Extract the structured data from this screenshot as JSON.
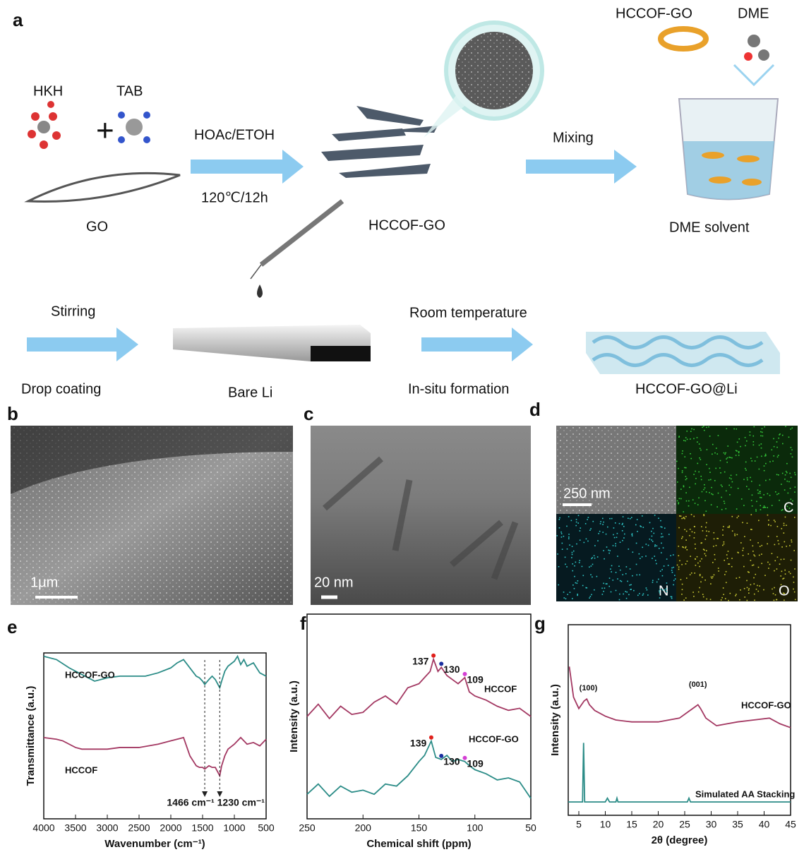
{
  "panel_labels": [
    "a",
    "b",
    "c",
    "d",
    "e",
    "f",
    "g"
  ],
  "schematic": {
    "hkh": "HKH",
    "tab": "TAB",
    "go": "GO",
    "hoac": "HOAc/ETOH",
    "temp": "120℃/12h",
    "hccof_go": "HCCOF-GO",
    "mixing": "Mixing",
    "hccof_go_top": "HCCOF-GO",
    "dme": "DME",
    "dme_solvent": "DME solvent",
    "stirring": "Stirring",
    "drop_coating": "Drop coating",
    "bare_li": "Bare Li",
    "room_temp": "Room temperature",
    "insitu": "In-situ formation",
    "product": "HCCOF-GO@Li"
  },
  "micrographs": {
    "b_scale": "1μm",
    "c_scale": "20 nm",
    "d_scale": "250 nm",
    "d_maps": [
      "C",
      "N",
      "O"
    ]
  },
  "chart_data": [
    {
      "type": "line",
      "xlabel": "Wavenumber (cm⁻¹)",
      "ylabel": "Transmittance (a.u.)",
      "xlim": [
        4000,
        500
      ],
      "xticks": [
        4000,
        3500,
        3000,
        2500,
        2000,
        1500,
        1000,
        500
      ],
      "ylim": [
        0,
        10
      ],
      "series": [
        {
          "name": "HCCOF-GO",
          "color": "#2b8c87",
          "x": [
            4000,
            3800,
            3600,
            3400,
            3200,
            3000,
            2800,
            2600,
            2400,
            2200,
            2000,
            1900,
            1800,
            1700,
            1600,
            1550,
            1500,
            1466,
            1400,
            1350,
            1300,
            1230,
            1200,
            1150,
            1100,
            1000,
            950,
            900,
            850,
            800,
            700,
            600,
            500
          ],
          "values": [
            9.8,
            9.6,
            9.1,
            8.7,
            8.3,
            8.5,
            8.6,
            8.6,
            8.6,
            8.8,
            9.1,
            9.4,
            9.6,
            9.1,
            8.6,
            8.5,
            8.3,
            8.1,
            8.4,
            8.6,
            8.4,
            7.9,
            8.3,
            8.9,
            9.2,
            9.5,
            9.8,
            9.3,
            9.6,
            9.2,
            9.4,
            8.8,
            8.6
          ]
        },
        {
          "name": "HCCOF",
          "color": "#a33862",
          "x": [
            4000,
            3800,
            3700,
            3600,
            3500,
            3400,
            3200,
            3000,
            2800,
            2500,
            2200,
            2000,
            1800,
            1700,
            1600,
            1550,
            1500,
            1466,
            1400,
            1350,
            1300,
            1230,
            1200,
            1150,
            1100,
            1000,
            950,
            900,
            850,
            800,
            700,
            600,
            500
          ],
          "values": [
            4.9,
            4.8,
            4.7,
            4.5,
            4.3,
            4.2,
            4.2,
            4.2,
            4.3,
            4.3,
            4.5,
            4.7,
            4.9,
            3.8,
            3.2,
            3.1,
            3.1,
            3.0,
            3.2,
            3.1,
            3.1,
            2.6,
            3.2,
            3.8,
            4.2,
            4.5,
            4.7,
            4.9,
            4.7,
            4.5,
            4.6,
            4.4,
            4.8
          ]
        }
      ],
      "annotations": [
        {
          "x": 1466,
          "label": "1466 cm⁻¹"
        },
        {
          "x": 1230,
          "label": "1230 cm⁻¹"
        }
      ]
    },
    {
      "type": "line",
      "xlabel": "Chemical shift (ppm)",
      "ylabel": "Intensity (a.u.)",
      "xlim": [
        250,
        50
      ],
      "xticks": [
        250,
        200,
        150,
        100,
        50
      ],
      "ylim": [
        0,
        10
      ],
      "peak_colors": [
        "#e0201b",
        "#1a2fa0",
        "#d43fd4"
      ],
      "series": [
        {
          "name": "HCCOF",
          "color": "#a33862",
          "x": [
            250,
            240,
            230,
            220,
            210,
            200,
            190,
            180,
            170,
            160,
            150,
            145,
            140,
            137,
            133,
            130,
            125,
            120,
            115,
            109,
            105,
            100,
            90,
            80,
            70,
            60,
            50
          ],
          "values": [
            5.0,
            5.6,
            4.9,
            5.5,
            5.1,
            5.2,
            5.7,
            6.0,
            5.6,
            6.4,
            6.6,
            6.9,
            7.2,
            7.8,
            7.2,
            7.4,
            7.0,
            6.8,
            6.6,
            6.9,
            6.2,
            6.0,
            5.8,
            5.5,
            5.3,
            5.4,
            5.0
          ]
        },
        {
          "name": "HCCOF-GO",
          "color": "#2b8c87",
          "x": [
            250,
            240,
            230,
            220,
            210,
            200,
            190,
            180,
            170,
            160,
            150,
            145,
            139,
            135,
            130,
            125,
            120,
            115,
            109,
            105,
            100,
            90,
            80,
            70,
            60,
            50
          ],
          "values": [
            1.2,
            1.7,
            1.1,
            1.6,
            1.3,
            1.4,
            1.2,
            1.7,
            1.6,
            2.1,
            2.8,
            3.1,
            3.8,
            3.0,
            2.9,
            3.1,
            2.8,
            2.9,
            2.8,
            2.6,
            2.4,
            2.2,
            1.9,
            2.0,
            1.8,
            1.0
          ]
        }
      ],
      "peaks": [
        [
          137,
          130,
          109
        ],
        [
          139,
          130,
          109
        ]
      ]
    },
    {
      "type": "line",
      "xlabel": "2θ (degree)",
      "ylabel": "Intensity (a.u.)",
      "xlim": [
        3,
        45
      ],
      "xticks": [
        5,
        10,
        15,
        20,
        25,
        30,
        35,
        40,
        45
      ],
      "ylim": [
        0,
        10
      ],
      "series": [
        {
          "name": "HCCOF-GO",
          "color": "#a33862",
          "x": [
            3.2,
            4,
            5,
            6,
            6.5,
            7,
            8,
            10,
            12,
            15,
            18,
            20,
            22,
            24,
            26,
            27,
            27.5,
            28,
            29,
            31,
            33,
            35,
            38,
            41,
            43,
            45
          ],
          "values": [
            7.8,
            6.2,
            5.6,
            6.0,
            6.1,
            5.8,
            5.5,
            5.2,
            5.0,
            4.9,
            4.9,
            4.9,
            5.0,
            5.1,
            5.5,
            5.7,
            5.8,
            5.6,
            5.1,
            4.7,
            4.8,
            4.9,
            5.0,
            5.1,
            4.8,
            4.6
          ]
        },
        {
          "name": "Simulated AA Stacking",
          "color": "#2b8c87",
          "x": [
            3,
            5.7,
            5.9,
            6.1,
            10,
            10.4,
            10.8,
            12,
            12.2,
            12.4,
            25.5,
            25.8,
            26.1,
            45
          ],
          "values": [
            0.7,
            0.7,
            3.8,
            0.7,
            0.7,
            0.9,
            0.7,
            0.7,
            0.9,
            0.7,
            0.7,
            0.9,
            0.7,
            0.7
          ]
        }
      ],
      "annotations": [
        {
          "x": 6.8,
          "label": "(100)"
        },
        {
          "x": 27.5,
          "label": "(001)"
        }
      ]
    }
  ]
}
